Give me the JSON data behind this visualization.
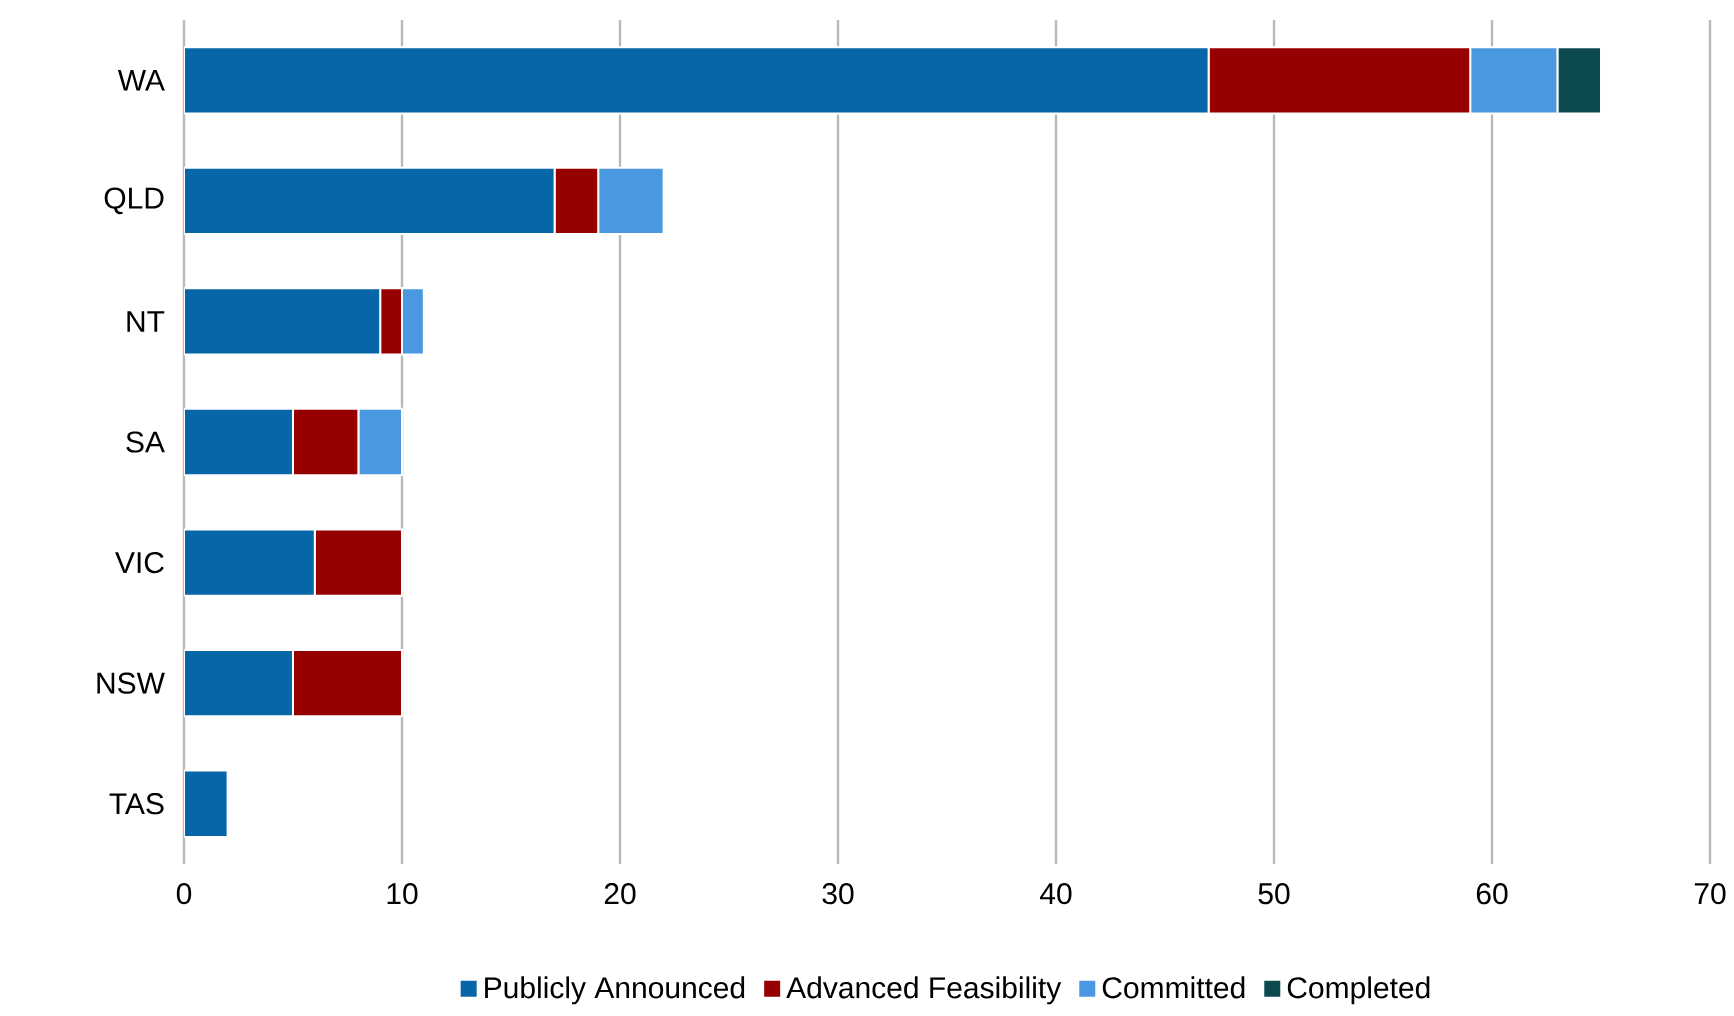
{
  "chart_data": {
    "type": "bar",
    "orientation": "horizontal",
    "stacked": true,
    "categories": [
      "WA",
      "QLD",
      "NT",
      "SA",
      "VIC",
      "NSW",
      "TAS"
    ],
    "series": [
      {
        "name": "Publicly Announced",
        "color": "#0766a8",
        "values": [
          47,
          17,
          9,
          5,
          6,
          5,
          2
        ]
      },
      {
        "name": "Advanced Feasibility",
        "color": "#960000",
        "values": [
          12,
          2,
          1,
          3,
          4,
          5,
          0
        ]
      },
      {
        "name": "Committed",
        "color": "#4a99e0",
        "values": [
          4,
          3,
          1,
          2,
          0,
          0,
          0
        ]
      },
      {
        "name": "Completed",
        "color": "#0d4a4f",
        "values": [
          2,
          0,
          0,
          0,
          0,
          0,
          0
        ]
      }
    ],
    "xlim": [
      0,
      70
    ],
    "xticks": [
      0,
      10,
      20,
      30,
      40,
      50,
      60,
      70
    ],
    "grid": "x",
    "legend": "bottom"
  }
}
